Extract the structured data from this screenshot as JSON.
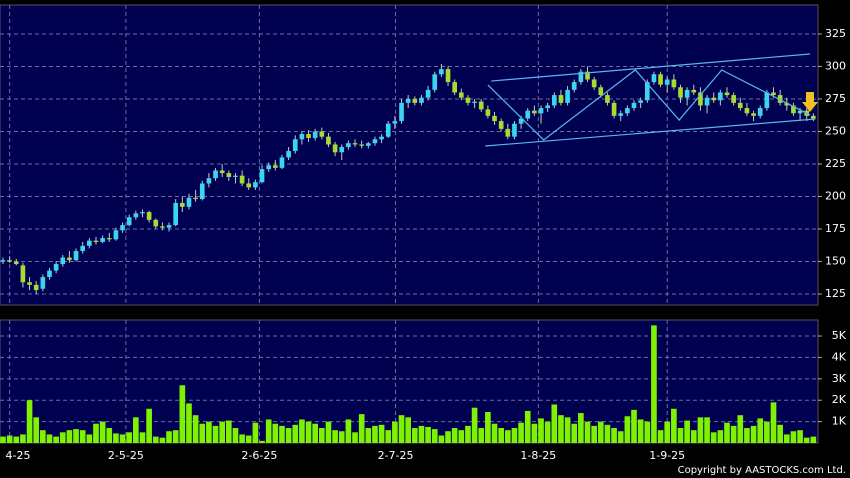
{
  "chart_data": {
    "type": "candlestick",
    "xlim": [
      -0.45,
      122.7
    ],
    "xticks": [
      {
        "value": 1,
        "label": "4-25"
      },
      {
        "value": 18.5,
        "label": "2-5-25"
      },
      {
        "value": 38.6,
        "label": "2-6-25"
      },
      {
        "value": 59.1,
        "label": "2-7-25"
      },
      {
        "value": 80.6,
        "label": "1-8-25"
      },
      {
        "value": 100,
        "label": "1-9-25"
      }
    ],
    "ylim": [
      116.5,
      347.3
    ],
    "yticks": [
      125,
      150,
      175,
      200,
      225,
      250,
      275,
      300,
      325
    ],
    "up_color": "#38d6f2",
    "down_color": "#a6dc2e",
    "grid": true,
    "ohlc": [
      [
        150,
        153,
        148,
        151
      ],
      [
        151,
        154,
        149,
        150
      ],
      [
        150,
        152,
        147,
        148
      ],
      [
        147,
        149,
        130,
        134
      ],
      [
        134,
        138,
        128,
        132
      ],
      [
        132,
        135,
        125,
        128
      ],
      [
        129,
        140,
        127,
        138
      ],
      [
        138,
        145,
        136,
        143
      ],
      [
        143,
        150,
        141,
        148
      ],
      [
        148,
        155,
        146,
        153
      ],
      [
        153,
        158,
        149,
        151
      ],
      [
        151,
        160,
        150,
        158
      ],
      [
        158,
        165,
        156,
        162
      ],
      [
        162,
        168,
        160,
        166
      ],
      [
        166,
        169,
        163,
        165
      ],
      [
        165,
        170,
        164,
        168
      ],
      [
        168,
        172,
        165,
        167
      ],
      [
        167,
        176,
        166,
        174
      ],
      [
        174,
        180,
        172,
        178
      ],
      [
        178,
        186,
        177,
        184
      ],
      [
        184,
        189,
        182,
        187
      ],
      [
        187,
        190,
        184,
        188
      ],
      [
        188,
        189,
        180,
        182
      ],
      [
        182,
        183,
        175,
        177
      ],
      [
        177,
        180,
        174,
        176
      ],
      [
        176,
        180,
        173,
        178
      ],
      [
        178,
        198,
        177,
        195
      ],
      [
        195,
        200,
        188,
        192
      ],
      [
        192,
        202,
        190,
        199
      ],
      [
        199,
        205,
        196,
        198
      ],
      [
        198,
        212,
        197,
        210
      ],
      [
        210,
        218,
        207,
        214
      ],
      [
        214,
        222,
        212,
        220
      ],
      [
        220,
        225,
        215,
        218
      ],
      [
        218,
        220,
        212,
        215
      ],
      [
        215,
        218,
        210,
        216
      ],
      [
        216,
        220,
        208,
        210
      ],
      [
        210,
        214,
        205,
        207
      ],
      [
        207,
        213,
        205,
        211
      ],
      [
        211,
        224,
        210,
        221
      ],
      [
        221,
        226,
        219,
        224
      ],
      [
        224,
        228,
        220,
        222
      ],
      [
        222,
        232,
        221,
        230
      ],
      [
        230,
        238,
        228,
        235
      ],
      [
        235,
        247,
        233,
        244
      ],
      [
        244,
        250,
        240,
        248
      ],
      [
        248,
        251,
        242,
        245
      ],
      [
        245,
        252,
        243,
        250
      ],
      [
        250,
        253,
        244,
        246
      ],
      [
        246,
        249,
        238,
        240
      ],
      [
        240,
        242,
        231,
        234
      ],
      [
        234,
        240,
        228,
        238
      ],
      [
        238,
        243,
        236,
        241
      ],
      [
        241,
        244,
        238,
        240
      ],
      [
        240,
        243,
        237,
        239
      ],
      [
        239,
        242,
        237,
        241
      ],
      [
        241,
        246,
        239,
        244
      ],
      [
        244,
        248,
        241,
        246
      ],
      [
        246,
        258,
        245,
        256
      ],
      [
        256,
        262,
        252,
        258
      ],
      [
        258,
        275,
        256,
        272
      ],
      [
        272,
        278,
        268,
        275
      ],
      [
        275,
        277,
        270,
        272
      ],
      [
        272,
        278,
        270,
        276
      ],
      [
        276,
        285,
        274,
        282
      ],
      [
        282,
        296,
        280,
        294
      ],
      [
        294,
        302,
        292,
        298
      ],
      [
        298,
        300,
        285,
        288
      ],
      [
        288,
        290,
        278,
        280
      ],
      [
        280,
        283,
        274,
        276
      ],
      [
        276,
        278,
        270,
        272
      ],
      [
        272,
        275,
        268,
        273
      ],
      [
        273,
        275,
        265,
        267
      ],
      [
        267,
        270,
        260,
        262
      ],
      [
        262,
        265,
        255,
        258
      ],
      [
        258,
        260,
        250,
        252
      ],
      [
        252,
        256,
        244,
        246
      ],
      [
        246,
        258,
        244,
        256
      ],
      [
        256,
        262,
        252,
        260
      ],
      [
        260,
        268,
        258,
        266
      ],
      [
        266,
        270,
        262,
        264
      ],
      [
        264,
        270,
        256,
        268
      ],
      [
        268,
        272,
        265,
        270
      ],
      [
        270,
        280,
        268,
        278
      ],
      [
        278,
        282,
        270,
        272
      ],
      [
        272,
        285,
        270,
        282
      ],
      [
        282,
        290,
        280,
        288
      ],
      [
        288,
        298,
        286,
        296
      ],
      [
        296,
        300,
        288,
        290
      ],
      [
        290,
        292,
        282,
        284
      ],
      [
        284,
        286,
        276,
        278
      ],
      [
        278,
        280,
        270,
        272
      ],
      [
        272,
        274,
        260,
        262
      ],
      [
        262,
        266,
        258,
        264
      ],
      [
        264,
        270,
        262,
        268
      ],
      [
        268,
        274,
        266,
        272
      ],
      [
        272,
        276,
        268,
        274
      ],
      [
        274,
        290,
        272,
        288
      ],
      [
        288,
        296,
        286,
        294
      ],
      [
        294,
        296,
        284,
        286
      ],
      [
        286,
        292,
        280,
        290
      ],
      [
        290,
        294,
        282,
        284
      ],
      [
        284,
        286,
        272,
        276
      ],
      [
        276,
        284,
        270,
        282
      ],
      [
        282,
        286,
        278,
        280
      ],
      [
        280,
        284,
        266,
        270
      ],
      [
        270,
        278,
        264,
        276
      ],
      [
        276,
        280,
        272,
        274
      ],
      [
        274,
        282,
        270,
        280
      ],
      [
        280,
        284,
        276,
        278
      ],
      [
        278,
        280,
        270,
        272
      ],
      [
        272,
        276,
        266,
        268
      ],
      [
        268,
        272,
        262,
        264
      ],
      [
        264,
        266,
        258,
        262
      ],
      [
        262,
        270,
        260,
        268
      ],
      [
        268,
        282,
        266,
        280
      ],
      [
        280,
        284,
        276,
        278
      ],
      [
        278,
        282,
        270,
        272
      ],
      [
        272,
        276,
        266,
        270
      ],
      [
        270,
        272,
        262,
        264
      ],
      [
        264,
        268,
        258,
        266
      ],
      [
        266,
        268,
        258,
        262
      ],
      [
        262,
        264,
        258,
        260
      ]
    ],
    "lines": [
      {
        "color": "#5ab4f0",
        "x": [
          73.5,
          121.5
        ],
        "y": [
          288.8,
          309.6
        ]
      },
      {
        "color": "#5ab4f0",
        "x": [
          72.6,
          122.3
        ],
        "y": [
          238.8,
          259.6
        ]
      },
      {
        "color": "#5ab4f0",
        "x": [
          73,
          81.4,
          95.2,
          101.8,
          108.2,
          121.5
        ],
        "y": [
          285.8,
          243.5,
          297.3,
          258.8,
          297.3,
          262.7
        ]
      }
    ],
    "volume": {
      "color": "#7ef200",
      "ylim": [
        0,
        5750
      ],
      "yticks": [
        {
          "value": 1000,
          "label": "1K"
        },
        {
          "value": 2000,
          "label": "2K"
        },
        {
          "value": 3000,
          "label": "3K"
        },
        {
          "value": 4000,
          "label": "4K"
        },
        {
          "value": 5000,
          "label": "5K"
        }
      ],
      "values": [
        300,
        350,
        300,
        400,
        2000,
        1200,
        600,
        400,
        300,
        500,
        600,
        650,
        600,
        400,
        900,
        1000,
        700,
        450,
        400,
        500,
        1200,
        500,
        1600,
        300,
        250,
        550,
        600,
        2700,
        1850,
        1300,
        900,
        1000,
        800,
        1000,
        1050,
        700,
        400,
        350,
        950,
        100,
        1100,
        900,
        800,
        700,
        850,
        1100,
        1000,
        900,
        700,
        1000,
        600,
        550,
        1100,
        500,
        1350,
        700,
        800,
        850,
        600,
        1000,
        1300,
        1200,
        700,
        800,
        750,
        650,
        350,
        550,
        700,
        600,
        800,
        1650,
        700,
        1450,
        900,
        700,
        600,
        700,
        950,
        1500,
        900,
        1150,
        1000,
        1800,
        1300,
        1200,
        900,
        1400,
        1000,
        800,
        1000,
        850,
        700,
        550,
        1250,
        1550,
        1100,
        1000,
        5500,
        600,
        1000,
        1600,
        700,
        1050,
        600,
        1200,
        1200,
        500,
        600,
        950,
        800,
        1300,
        700,
        800,
        1150,
        1000,
        1900,
        850,
        400,
        550,
        600,
        250,
        300
      ]
    },
    "credit": "Copyright by AASTOCKS.com Ltd."
  }
}
